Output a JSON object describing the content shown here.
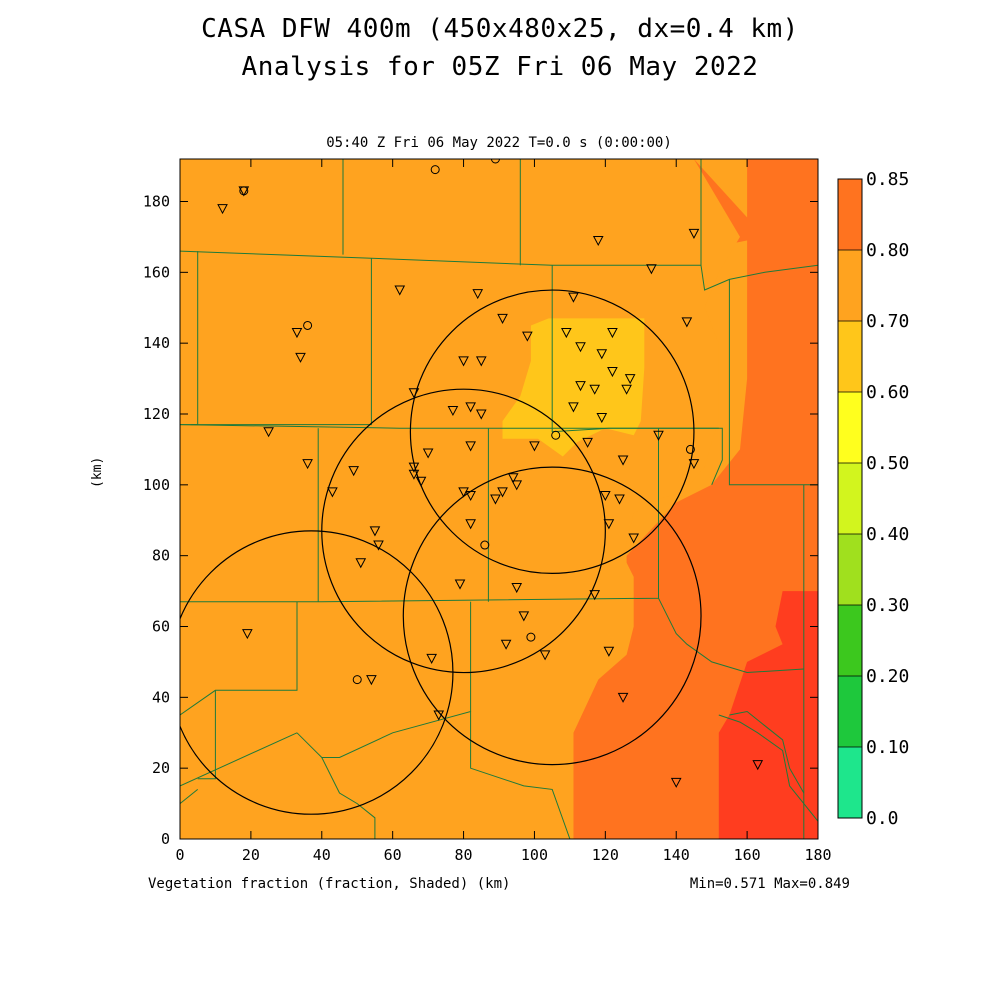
{
  "title": {
    "line1": "CASA DFW 400m (450x480x25, dx=0.4 km)",
    "line2": "Analysis for 05Z Fri 06 May 2022"
  },
  "subtitle": "05:40 Z Fri 06 May 2022   T=0.0 s (0:00:00)",
  "footer": {
    "left": "Vegetation fraction (fraction, Shaded)  (km)",
    "right": "Min=0.571 Max=0.849"
  },
  "colors": {
    "c050_060": "#ffc61a",
    "c060_070": "#ffa31f",
    "c070_080": "#ff731f",
    "c080_085": "#ff3d1f",
    "county_line": "#1f7a3a",
    "radar_circle": "#000000"
  },
  "chart_data": {
    "type": "heatmap",
    "xlabel": "(km)",
    "ylabel": "(km)",
    "xlim": [
      0,
      180
    ],
    "ylim": [
      0,
      192
    ],
    "xticks": [
      "0",
      "20",
      "40",
      "60",
      "80",
      "100",
      "120",
      "140",
      "160",
      "180"
    ],
    "yticks": [
      "0",
      "20",
      "40",
      "60",
      "80",
      "100",
      "120",
      "140",
      "160",
      "180"
    ],
    "colorbar": {
      "levels": [
        "0.0",
        "0.10",
        "0.20",
        "0.30",
        "0.40",
        "0.50",
        "0.60",
        "0.70",
        "0.80",
        "0.85"
      ],
      "colors": [
        "#1ee68c",
        "#1ec83c",
        "#3cc81e",
        "#a0e01e",
        "#d2f51e",
        "#ffff1e",
        "#ffc61a",
        "#ffa31f",
        "#ff731f",
        "#ff3d1f"
      ]
    },
    "min": 0.571,
    "max": 0.849,
    "radar_circles": [
      {
        "cx": 37,
        "cy": 47,
        "r": 40
      },
      {
        "cx": 80,
        "cy": 87,
        "r": 40
      },
      {
        "cx": 105,
        "cy": 63,
        "r": 42
      },
      {
        "cx": 105,
        "cy": 115,
        "r": 40
      }
    ],
    "stations_triangle": [
      [
        12,
        178
      ],
      [
        18,
        183
      ],
      [
        145,
        171
      ],
      [
        118,
        169
      ],
      [
        133,
        161
      ],
      [
        62,
        155
      ],
      [
        84,
        154
      ],
      [
        111,
        153
      ],
      [
        143,
        146
      ],
      [
        91,
        147
      ],
      [
        98,
        142
      ],
      [
        109,
        143
      ],
      [
        33,
        143
      ],
      [
        122,
        143
      ],
      [
        34,
        136
      ],
      [
        80,
        135
      ],
      [
        85,
        135
      ],
      [
        113,
        139
      ],
      [
        119,
        137
      ],
      [
        122,
        132
      ],
      [
        127,
        130
      ],
      [
        113,
        128
      ],
      [
        117,
        127
      ],
      [
        126,
        127
      ],
      [
        66,
        126
      ],
      [
        111,
        122
      ],
      [
        77,
        121
      ],
      [
        82,
        122
      ],
      [
        85,
        120
      ],
      [
        119,
        119
      ],
      [
        135,
        114
      ],
      [
        25,
        115
      ],
      [
        82,
        111
      ],
      [
        100,
        111
      ],
      [
        115,
        112
      ],
      [
        70,
        109
      ],
      [
        125,
        107
      ],
      [
        145,
        106
      ],
      [
        36,
        106
      ],
      [
        49,
        104
      ],
      [
        66,
        105
      ],
      [
        66,
        103
      ],
      [
        68,
        101
      ],
      [
        94,
        102
      ],
      [
        95,
        100
      ],
      [
        43,
        98
      ],
      [
        80,
        98
      ],
      [
        82,
        97
      ],
      [
        89,
        96
      ],
      [
        91,
        98
      ],
      [
        120,
        97
      ],
      [
        124,
        96
      ],
      [
        82,
        89
      ],
      [
        121,
        89
      ],
      [
        128,
        85
      ],
      [
        55,
        87
      ],
      [
        56,
        83
      ],
      [
        51,
        78
      ],
      [
        79,
        72
      ],
      [
        95,
        71
      ],
      [
        117,
        69
      ],
      [
        97,
        63
      ],
      [
        19,
        58
      ],
      [
        92,
        55
      ],
      [
        121,
        53
      ],
      [
        103,
        52
      ],
      [
        71,
        51
      ],
      [
        54,
        45
      ],
      [
        125,
        40
      ],
      [
        73,
        35
      ],
      [
        140,
        16
      ],
      [
        163,
        21
      ]
    ],
    "stations_circle": [
      [
        18,
        183
      ],
      [
        72,
        189
      ],
      [
        89,
        192
      ],
      [
        36,
        145
      ],
      [
        106,
        114
      ],
      [
        144,
        110
      ],
      [
        86,
        83
      ],
      [
        99,
        57
      ],
      [
        50,
        45
      ]
    ]
  }
}
